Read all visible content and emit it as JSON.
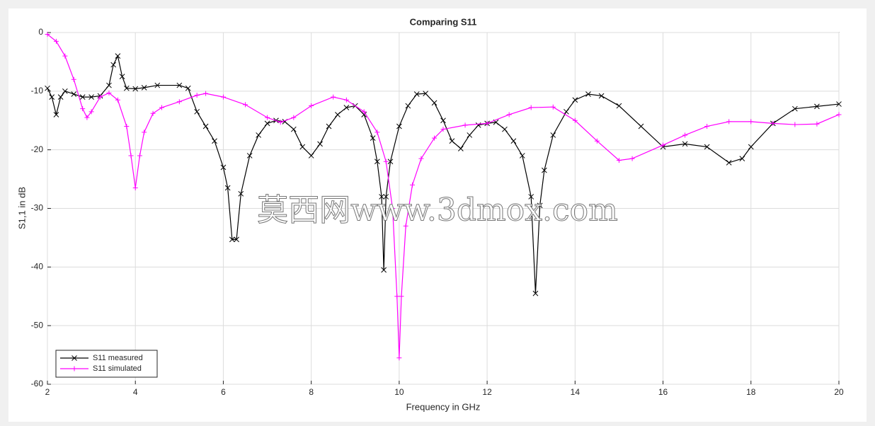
{
  "chart_data": {
    "type": "line",
    "title": "Comparing S11",
    "x_label": "Frequency in GHz",
    "y_label": "S1,1 in dB",
    "watermark": "莫西网www.3dmox.com",
    "xlim": [
      2,
      20
    ],
    "xticks": [
      2,
      4,
      6,
      8,
      10,
      12,
      14,
      16,
      18,
      20
    ],
    "ylim": [
      -60,
      0
    ],
    "yticks": [
      -60,
      -50,
      -40,
      -30,
      -20,
      -10,
      0
    ],
    "grid": true,
    "legend": "lower left",
    "series": [
      {
        "name": "S11 measured",
        "color": "#000000",
        "marker": "x",
        "x": [
          2.0,
          2.1,
          2.2,
          2.3,
          2.4,
          2.6,
          2.8,
          3.0,
          3.2,
          3.4,
          3.5,
          3.6,
          3.7,
          3.8,
          4.0,
          4.2,
          4.5,
          5.0,
          5.2,
          5.4,
          5.6,
          5.8,
          6.0,
          6.1,
          6.2,
          6.3,
          6.4,
          6.6,
          6.8,
          7.0,
          7.2,
          7.4,
          7.6,
          7.8,
          8.0,
          8.2,
          8.4,
          8.6,
          8.8,
          9.0,
          9.2,
          9.4,
          9.5,
          9.6,
          9.65,
          9.7,
          9.8,
          10.0,
          10.2,
          10.4,
          10.6,
          10.8,
          11.0,
          11.2,
          11.4,
          11.6,
          11.8,
          12.0,
          12.2,
          12.4,
          12.6,
          12.8,
          13.0,
          13.1,
          13.2,
          13.3,
          13.5,
          13.8,
          14.0,
          14.3,
          14.6,
          15.0,
          15.5,
          16.0,
          16.5,
          17.0,
          17.5,
          17.8,
          18.0,
          18.5,
          19.0,
          19.5,
          20.0
        ],
        "values": [
          -9.5,
          -11,
          -14,
          -11,
          -10,
          -10.5,
          -11,
          -11,
          -10.8,
          -9,
          -5.5,
          -4,
          -7.5,
          -9.5,
          -9.6,
          -9.4,
          -9,
          -9,
          -9.5,
          -13.5,
          -16,
          -18.5,
          -23,
          -26.5,
          -35.3,
          -35.3,
          -27.5,
          -21,
          -17.5,
          -15.5,
          -15,
          -15.2,
          -16.5,
          -19.5,
          -21,
          -19,
          -16,
          -14,
          -12.8,
          -12.5,
          -14,
          -18,
          -22,
          -28,
          -40.5,
          -28,
          -22,
          -16,
          -12.5,
          -10.5,
          -10.4,
          -12,
          -15,
          -18.5,
          -19.8,
          -17.5,
          -15.8,
          -15.5,
          -15.3,
          -16.5,
          -18.5,
          -21,
          -28,
          -44.5,
          -29.5,
          -23.5,
          -17.5,
          -13.5,
          -11.5,
          -10.5,
          -10.8,
          -12.5,
          -16,
          -19.5,
          -19,
          -19.5,
          -22.2,
          -21.5,
          -19.5,
          -15.5,
          -13,
          -12.6,
          -12.2
        ]
      },
      {
        "name": "S11 simulated",
        "color": "#ff00ff",
        "marker": "+",
        "x": [
          2.0,
          2.2,
          2.4,
          2.6,
          2.8,
          2.9,
          3.0,
          3.2,
          3.4,
          3.6,
          3.8,
          3.9,
          4.0,
          4.1,
          4.2,
          4.4,
          4.6,
          5.0,
          5.4,
          5.6,
          6.0,
          6.5,
          7.0,
          7.3,
          7.6,
          8.0,
          8.5,
          8.8,
          9.2,
          9.5,
          9.7,
          9.85,
          9.95,
          10.0,
          10.05,
          10.15,
          10.3,
          10.5,
          10.8,
          11.0,
          11.5,
          12.0,
          12.5,
          13.0,
          13.5,
          14.0,
          14.5,
          15.0,
          15.3,
          16.0,
          16.5,
          17.0,
          17.5,
          18.0,
          18.5,
          19.0,
          19.5,
          20.0
        ],
        "values": [
          -0.3,
          -1.5,
          -4,
          -8,
          -13,
          -14.5,
          -13.5,
          -11,
          -10.3,
          -11.5,
          -16,
          -21,
          -26.5,
          -21,
          -17,
          -13.8,
          -12.8,
          -11.8,
          -10.7,
          -10.4,
          -11,
          -12.3,
          -14.5,
          -15.3,
          -14.5,
          -12.5,
          -11,
          -11.5,
          -13.5,
          -17,
          -22,
          -30,
          -45,
          -55.5,
          -45,
          -33,
          -26,
          -21.5,
          -18,
          -16.5,
          -15.8,
          -15.5,
          -14,
          -12.8,
          -12.7,
          -15,
          -18.5,
          -21.8,
          -21.5,
          -19.2,
          -17.5,
          -16,
          -15.2,
          -15.2,
          -15.5,
          -15.7,
          -15.6,
          -14
        ]
      }
    ]
  }
}
